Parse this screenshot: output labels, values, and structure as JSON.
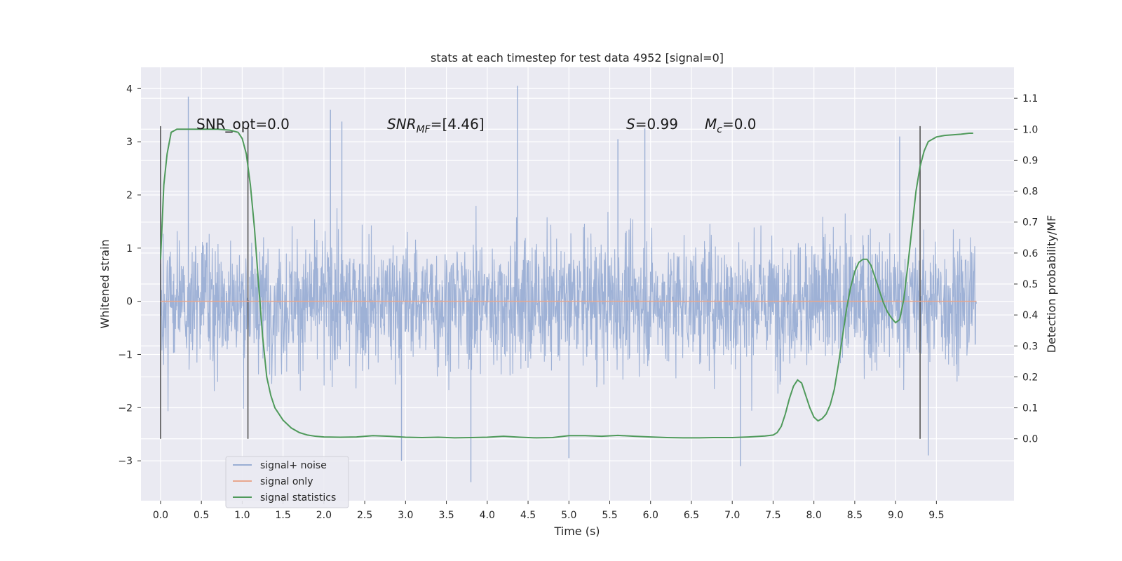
{
  "chart_data": {
    "type": "line",
    "title": "stats at each timestep for test data 4952 [signal=0]",
    "xlabel": "Time (s)",
    "ylabel_left": "Whitened strain",
    "ylabel_right": "Detection probability/MF",
    "xlim": [
      -0.24,
      10.45
    ],
    "ylim_left": [
      -3.75,
      4.4
    ],
    "ylim_right": [
      -0.2,
      1.2
    ],
    "x_ticks": [
      "0.0",
      "0.5",
      "1.0",
      "1.5",
      "2.0",
      "2.5",
      "3.0",
      "3.5",
      "4.0",
      "4.5",
      "5.0",
      "5.5",
      "6.0",
      "6.5",
      "7.0",
      "7.5",
      "8.0",
      "8.5",
      "9.0",
      "9.5"
    ],
    "y_ticks_left": [
      "−3",
      "−2",
      "−1",
      "0",
      "1",
      "2",
      "3",
      "4"
    ],
    "y_ticks_right": [
      "0.0",
      "0.1",
      "0.2",
      "0.3",
      "0.4",
      "0.5",
      "0.6",
      "0.7",
      "0.8",
      "0.9",
      "1.0",
      "1.1"
    ],
    "grid": true,
    "legend_position": "lower-left",
    "annotations": {
      "snr_opt": "SNR_opt=0.0",
      "snr_mf_prefix": "SNR",
      "snr_mf_sub": "MF",
      "snr_mf_value": "=[4.46]",
      "s_prefix": "S",
      "s_value": "=0.99",
      "mc_prefix": "M",
      "mc_sub": "c",
      "mc_value": "=0.0"
    },
    "vertical_markers_x": [
      0.0,
      1.07,
      9.3
    ],
    "series": [
      {
        "name": "signal+ noise",
        "color": "#9aaed4",
        "axis": "left",
        "x_range": [
          0.0,
          9.99
        ],
        "envelope_abs_typical": 1.5,
        "peak_samples": [
          {
            "x": 0.34,
            "y": 3.85
          },
          {
            "x": 4.37,
            "y": 4.05
          },
          {
            "x": 3.8,
            "y": -3.4
          },
          {
            "x": 2.22,
            "y": 3.38
          },
          {
            "x": 2.08,
            "y": 3.6
          },
          {
            "x": 7.1,
            "y": -3.1
          },
          {
            "x": 9.4,
            "y": -2.9
          },
          {
            "x": 9.05,
            "y": 3.1
          },
          {
            "x": 5.93,
            "y": 3.25
          },
          {
            "x": 2.95,
            "y": -3.0
          },
          {
            "x": 5.0,
            "y": -2.95
          },
          {
            "x": 5.6,
            "y": 3.05
          }
        ]
      },
      {
        "name": "signal only",
        "color": "#e8a78e",
        "axis": "left",
        "x": [
          0.0,
          9.99
        ],
        "y": [
          0.0,
          0.0
        ]
      },
      {
        "name": "signal statistics",
        "color": "#4f9a5b",
        "axis": "right",
        "x": [
          0.0,
          0.04,
          0.08,
          0.13,
          0.2,
          0.3,
          0.5,
          0.7,
          0.85,
          0.95,
          1.0,
          1.05,
          1.1,
          1.15,
          1.2,
          1.25,
          1.3,
          1.35,
          1.4,
          1.5,
          1.6,
          1.7,
          1.8,
          1.9,
          2.0,
          2.2,
          2.4,
          2.6,
          2.8,
          3.0,
          3.2,
          3.4,
          3.6,
          3.8,
          4.0,
          4.2,
          4.4,
          4.6,
          4.8,
          5.0,
          5.2,
          5.4,
          5.6,
          5.8,
          6.0,
          6.2,
          6.4,
          6.6,
          6.8,
          7.0,
          7.2,
          7.4,
          7.5,
          7.55,
          7.6,
          7.65,
          7.7,
          7.75,
          7.8,
          7.85,
          7.9,
          7.95,
          8.0,
          8.05,
          8.1,
          8.15,
          8.2,
          8.25,
          8.3,
          8.35,
          8.4,
          8.45,
          8.5,
          8.55,
          8.6,
          8.65,
          8.7,
          8.75,
          8.8,
          8.85,
          8.9,
          8.95,
          9.0,
          9.05,
          9.1,
          9.15,
          9.2,
          9.25,
          9.3,
          9.35,
          9.4,
          9.5,
          9.6,
          9.7,
          9.8,
          9.9,
          9.95
        ],
        "y": [
          0.58,
          0.82,
          0.92,
          0.99,
          1.0,
          1.0,
          1.0,
          1.0,
          0.997,
          0.99,
          0.97,
          0.92,
          0.82,
          0.68,
          0.5,
          0.33,
          0.2,
          0.14,
          0.1,
          0.06,
          0.035,
          0.02,
          0.012,
          0.008,
          0.006,
          0.005,
          0.006,
          0.01,
          0.008,
          0.005,
          0.004,
          0.005,
          0.003,
          0.004,
          0.005,
          0.008,
          0.005,
          0.003,
          0.004,
          0.01,
          0.01,
          0.008,
          0.011,
          0.008,
          0.006,
          0.004,
          0.003,
          0.003,
          0.004,
          0.004,
          0.006,
          0.009,
          0.012,
          0.02,
          0.04,
          0.08,
          0.13,
          0.17,
          0.19,
          0.18,
          0.14,
          0.1,
          0.07,
          0.058,
          0.065,
          0.08,
          0.11,
          0.16,
          0.24,
          0.33,
          0.42,
          0.49,
          0.54,
          0.57,
          0.58,
          0.58,
          0.56,
          0.52,
          0.48,
          0.44,
          0.41,
          0.39,
          0.375,
          0.385,
          0.45,
          0.56,
          0.68,
          0.8,
          0.88,
          0.93,
          0.96,
          0.975,
          0.98,
          0.982,
          0.984,
          0.987,
          0.987
        ]
      }
    ]
  }
}
